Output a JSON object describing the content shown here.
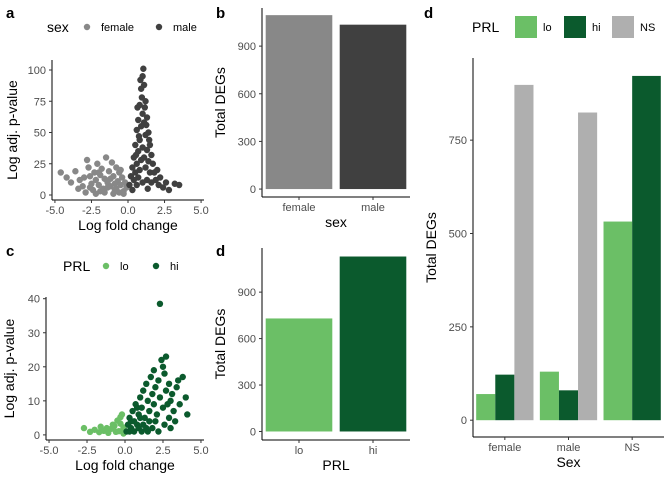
{
  "figure": {
    "panel_labels": [
      "a",
      "b",
      "c",
      "d",
      "d"
    ]
  },
  "chart_data": [
    {
      "id": "a",
      "type": "scatter",
      "xlabel": "Log fold change",
      "ylabel": "Log adj. p-value",
      "xlim": [
        -5.2,
        5.2
      ],
      "ylim": [
        -4,
        108
      ],
      "xticks": [
        -5.0,
        -2.5,
        0.0,
        2.5,
        5.0
      ],
      "xtick_labels": [
        "-5.0",
        "-2.5",
        "0.0",
        "2.5",
        "5.0"
      ],
      "yticks": [
        0,
        25,
        50,
        75,
        100
      ],
      "grid": false,
      "legend": {
        "title": "sex",
        "position": "top"
      },
      "series": [
        {
          "name": "female",
          "color": "#888888",
          "points": [
            [
              -4.6,
              18
            ],
            [
              -4.2,
              14
            ],
            [
              -3.9,
              10
            ],
            [
              -3.6,
              19
            ],
            [
              -3.4,
              5
            ],
            [
              -3.1,
              7
            ],
            [
              -3.0,
              14
            ],
            [
              -2.8,
              28
            ],
            [
              -2.7,
              22
            ],
            [
              -2.6,
              15
            ],
            [
              -2.5,
              9
            ],
            [
              -2.4,
              4
            ],
            [
              -2.3,
              18
            ],
            [
              -2.2,
              12
            ],
            [
              -2.1,
              25
            ],
            [
              -2.0,
              8
            ],
            [
              -1.9,
              16
            ],
            [
              -1.8,
              21
            ],
            [
              -1.7,
              5
            ],
            [
              -1.6,
              13
            ],
            [
              -1.5,
              30
            ],
            [
              -1.4,
              10
            ],
            [
              -1.3,
              19
            ],
            [
              -1.2,
              7
            ],
            [
              -1.1,
              26
            ],
            [
              -1.0,
              15
            ],
            [
              -0.9,
              4
            ],
            [
              -0.8,
              22
            ],
            [
              -0.7,
              11
            ],
            [
              -0.6,
              18
            ],
            [
              -0.5,
              8
            ],
            [
              -0.4,
              14
            ],
            [
              -0.3,
              3
            ],
            [
              -0.2,
              10
            ],
            [
              -0.1,
              6
            ],
            [
              -2.9,
              2
            ],
            [
              -2.2,
              1
            ],
            [
              -1.6,
              2
            ],
            [
              -1.0,
              1
            ],
            [
              -0.6,
              2
            ],
            [
              -0.3,
              1
            ],
            [
              -2.6,
              6
            ],
            [
              -1.9,
              3
            ],
            [
              -1.4,
              6
            ],
            [
              -0.8,
              5
            ],
            [
              -1.2,
              13
            ],
            [
              -3.3,
              12
            ],
            [
              -2.0,
              18
            ],
            [
              -0.5,
              20
            ],
            [
              -0.9,
              9
            ]
          ]
        },
        {
          "name": "male",
          "color": "#404040",
          "points": [
            [
              0.1,
              8
            ],
            [
              0.2,
              15
            ],
            [
              0.3,
              22
            ],
            [
              0.3,
              4
            ],
            [
              0.4,
              30
            ],
            [
              0.4,
              12
            ],
            [
              0.5,
              40
            ],
            [
              0.5,
              18
            ],
            [
              0.6,
              52
            ],
            [
              0.6,
              25
            ],
            [
              0.6,
              8
            ],
            [
              0.7,
              60
            ],
            [
              0.7,
              35
            ],
            [
              0.7,
              14
            ],
            [
              0.8,
              72
            ],
            [
              0.8,
              44
            ],
            [
              0.8,
              20
            ],
            [
              0.9,
              85
            ],
            [
              0.9,
              55
            ],
            [
              0.9,
              28
            ],
            [
              1.0,
              95
            ],
            [
              1.0,
              65
            ],
            [
              1.0,
              38
            ],
            [
              1.0,
              10
            ],
            [
              1.1,
              88
            ],
            [
              1.1,
              58
            ],
            [
              1.1,
              30
            ],
            [
              1.2,
              75
            ],
            [
              1.2,
              48
            ],
            [
              1.2,
              22
            ],
            [
              1.3,
              62
            ],
            [
              1.3,
              36
            ],
            [
              1.3,
              12
            ],
            [
              1.4,
              50
            ],
            [
              1.4,
              27
            ],
            [
              1.5,
              40
            ],
            [
              1.5,
              18
            ],
            [
              1.6,
              32
            ],
            [
              1.6,
              10
            ],
            [
              1.7,
              25
            ],
            [
              1.8,
              18
            ],
            [
              1.9,
              12
            ],
            [
              2.0,
              20
            ],
            [
              2.1,
              8
            ],
            [
              2.2,
              14
            ],
            [
              2.4,
              6
            ],
            [
              2.6,
              10
            ],
            [
              2.8,
              4
            ],
            [
              3.2,
              9
            ],
            [
              3.5,
              8
            ],
            [
              1.05,
              101
            ],
            [
              0.95,
              78
            ],
            [
              1.15,
              70
            ],
            [
              0.85,
              92
            ],
            [
              0.75,
              47
            ],
            [
              1.25,
              56
            ],
            [
              0.55,
              32
            ],
            [
              1.45,
              44
            ],
            [
              0.65,
              70
            ],
            [
              1.35,
              5
            ]
          ]
        }
      ]
    },
    {
      "id": "b",
      "type": "bar",
      "xlabel": "sex",
      "ylabel": "Total DEGs",
      "categories": [
        "female",
        "male"
      ],
      "values": [
        1095,
        1035
      ],
      "colors": [
        "#888888",
        "#404040"
      ],
      "ylim": [
        -50,
        1140
      ],
      "yticks": [
        0,
        300,
        600,
        900
      ],
      "grid": false
    },
    {
      "id": "c",
      "type": "scatter",
      "xlabel": "Log fold change",
      "ylabel": "Log adj. p-value",
      "xlim": [
        -5.2,
        5.2
      ],
      "ylim": [
        -1.5,
        40.5
      ],
      "xticks": [
        -5.0,
        -2.5,
        0.0,
        2.5,
        5.0
      ],
      "xtick_labels": [
        "-5.0",
        "-2.5",
        "0.0",
        "2.5",
        "5.0"
      ],
      "yticks": [
        0,
        10,
        20,
        30,
        40
      ],
      "grid": false,
      "legend": {
        "title": "PRL",
        "position": "top"
      },
      "series": [
        {
          "name": "lo",
          "color": "#6BBF66",
          "points": [
            [
              -2.7,
              2
            ],
            [
              -2.0,
              1.5
            ],
            [
              -1.7,
              0.8
            ],
            [
              -1.4,
              1.2
            ],
            [
              -1.1,
              0.6
            ],
            [
              -0.9,
              1.8
            ],
            [
              -0.7,
              2.6
            ],
            [
              -0.5,
              4.2
            ],
            [
              -0.4,
              1.1
            ],
            [
              -0.3,
              3.3
            ],
            [
              -0.2,
              6.0
            ],
            [
              -0.1,
              2.2
            ],
            [
              -0.1,
              0.4
            ],
            [
              -0.6,
              0.9
            ],
            [
              -1.2,
              2.0
            ],
            [
              -0.8,
              3.0
            ],
            [
              -0.3,
              5.2
            ],
            [
              -1.6,
              2.4
            ],
            [
              -2.3,
              0.9
            ],
            [
              -0.15,
              1.3
            ]
          ]
        },
        {
          "name": "hi",
          "color": "#0B5A2D",
          "points": [
            [
              0.1,
              1
            ],
            [
              0.2,
              3
            ],
            [
              0.3,
              5
            ],
            [
              0.4,
              2
            ],
            [
              0.5,
              7
            ],
            [
              0.6,
              4
            ],
            [
              0.7,
              9
            ],
            [
              0.8,
              3
            ],
            [
              0.9,
              6
            ],
            [
              1.0,
              11
            ],
            [
              1.1,
              8
            ],
            [
              1.2,
              13
            ],
            [
              1.3,
              5
            ],
            [
              1.4,
              15
            ],
            [
              1.5,
              10
            ],
            [
              1.6,
              7
            ],
            [
              1.7,
              17
            ],
            [
              1.8,
              12
            ],
            [
              1.9,
              9
            ],
            [
              2.0,
              14
            ],
            [
              2.1,
              6
            ],
            [
              2.2,
              16
            ],
            [
              2.3,
              11
            ],
            [
              2.4,
              22
            ],
            [
              2.5,
              8
            ],
            [
              2.6,
              18
            ],
            [
              2.7,
              13
            ],
            [
              2.8,
              9
            ],
            [
              2.9,
              15
            ],
            [
              3.0,
              10
            ],
            [
              3.1,
              12
            ],
            [
              3.2,
              7
            ],
            [
              3.4,
              14
            ],
            [
              3.6,
              9
            ],
            [
              3.8,
              17
            ],
            [
              4.0,
              11
            ],
            [
              4.1,
              6
            ],
            [
              2.3,
              38.5
            ],
            [
              1.5,
              1
            ],
            [
              0.9,
              2
            ],
            [
              1.2,
              3
            ],
            [
              0.6,
              1
            ],
            [
              2.0,
              4
            ],
            [
              1.8,
              2
            ],
            [
              2.6,
              3
            ],
            [
              1.0,
              5
            ],
            [
              0.4,
              4
            ],
            [
              3.0,
              2
            ],
            [
              1.6,
              4
            ],
            [
              2.2,
              1
            ],
            [
              3.3,
              4
            ],
            [
              0.3,
              1
            ],
            [
              1.1,
              1
            ],
            [
              2.9,
              5
            ],
            [
              1.4,
              2
            ],
            [
              0.8,
              8
            ],
            [
              2.5,
              20
            ],
            [
              1.9,
              19
            ],
            [
              3.5,
              16
            ],
            [
              2.7,
              23
            ]
          ]
        }
      ]
    },
    {
      "id": "d",
      "type": "bar",
      "xlabel": "PRL",
      "ylabel": "Total DEGs",
      "categories": [
        "lo",
        "hi"
      ],
      "values": [
        730,
        1130
      ],
      "colors": [
        "#6BBF66",
        "#0B5A2D"
      ],
      "ylim": [
        -55,
        1185
      ],
      "yticks": [
        0,
        300,
        600,
        900
      ],
      "grid": false
    },
    {
      "id": "d2",
      "type": "bar",
      "xlabel": "Sex",
      "ylabel": "Total DEGs",
      "categories": [
        "female",
        "male",
        "NS"
      ],
      "series": [
        {
          "name": "lo",
          "color": "#6BBF66",
          "values": [
            70,
            130,
            532
          ]
        },
        {
          "name": "hi",
          "color": "#0B5A2D",
          "values": [
            122,
            80,
            922
          ]
        },
        {
          "name": "NS",
          "color": "#AFAFAF",
          "values": [
            898,
            824,
            null
          ]
        }
      ],
      "ylim": [
        -45,
        970
      ],
      "yticks": [
        0,
        250,
        500,
        750
      ],
      "grid": false,
      "legend": {
        "title": "PRL",
        "position": "top"
      }
    }
  ]
}
